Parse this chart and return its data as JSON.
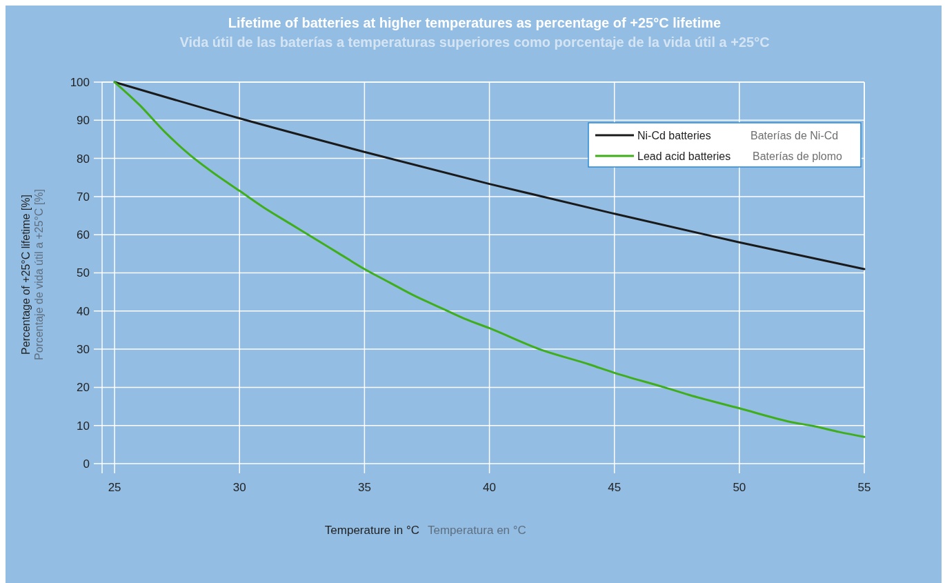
{
  "chart_data": {
    "type": "line",
    "title": "Lifetime of batteries at higher temperatures as percentage of +25°C lifetime",
    "subtitle": "Vida útil de las baterías a temperaturas superiores como porcentaje de la vida útil a +25°C",
    "xlabel": "Temperature in °C",
    "ylabel": "Percentage of  +25°C lifetime [%]",
    "annotations": [
      "Temperatura en °C",
      "Porcentaje de vida útil a +25°C [%]",
      "Baterías de Ni-Cd",
      "Baterías de plomo"
    ],
    "x": [
      25,
      26,
      27,
      28,
      29,
      30,
      31,
      32,
      33,
      34,
      35,
      36,
      37,
      38,
      39,
      40,
      42,
      44,
      45,
      47,
      48,
      50,
      52,
      53,
      54,
      55
    ],
    "series": [
      {
        "name": "Ni-Cd batteries",
        "color": "#1a1a1a",
        "x": [
          25,
          30,
          35,
          40,
          45,
          50,
          55
        ],
        "values": [
          100,
          90.5,
          81.7,
          73.3,
          65.5,
          58,
          51
        ]
      },
      {
        "name": "Lead acid batteries",
        "color": "#3fae1a",
        "values": [
          100,
          94,
          87,
          81,
          76,
          71.5,
          67,
          63,
          59,
          55,
          51,
          47.5,
          44,
          41,
          38,
          35.5,
          30,
          26,
          23.8,
          20,
          18,
          14.5,
          11,
          9.8,
          8.3,
          7
        ]
      }
    ],
    "xlim": [
      24.5,
      55
    ],
    "ylim": [
      0,
      100
    ],
    "xticks": [
      25,
      30,
      35,
      40,
      45,
      50,
      55
    ],
    "yticks": [
      0,
      10,
      20,
      30,
      40,
      50,
      60,
      70,
      80,
      90,
      100
    ],
    "grid": true,
    "legend": "top right",
    "line_style": "solid",
    "marker": "none"
  }
}
